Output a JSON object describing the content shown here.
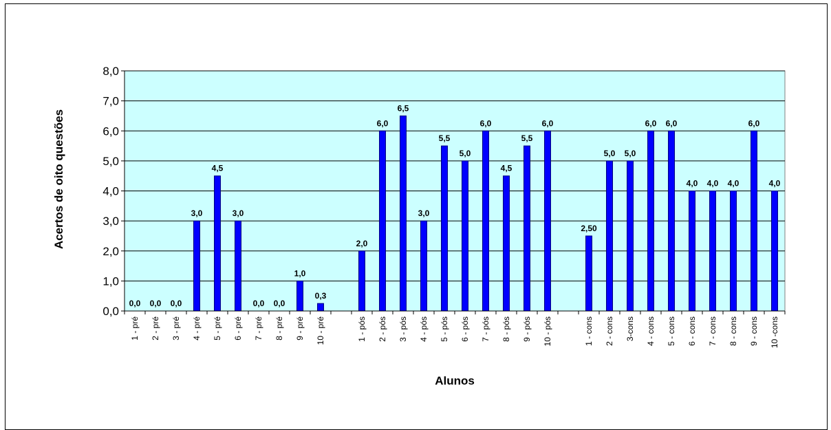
{
  "chart_data": {
    "type": "bar",
    "xlabel": "Alunos",
    "ylabel": "Acertos de oito questões",
    "ylim": [
      0,
      8
    ],
    "y_ticks": [
      "0,0",
      "1,0",
      "2,0",
      "3,0",
      "4,0",
      "5,0",
      "6,0",
      "7,0",
      "8,0"
    ],
    "grid": true,
    "legend": "none",
    "colors": {
      "plot_bg": "#ccffff",
      "bar_fill": "#0000ff",
      "bar_stroke": "#000080",
      "grid": "#000000"
    },
    "categories": [
      "1 - pré",
      "2 - pré",
      "3 - pré",
      "4 - pré",
      "5 - pré",
      "6 - pré",
      "7 - pré",
      "8 - pré",
      "9 - pré",
      "10 - pré",
      "",
      "1 - pós",
      "2 - pós",
      "3 - pós",
      "4 - pós",
      "5 - pós",
      "6 - pós",
      "7 - pós",
      "8 - pós",
      "9 - pós",
      "10 - pós",
      "",
      "1 - cons",
      "2 - cons",
      "3-cons",
      "4 - cons",
      "5 - cons",
      "6 - cons",
      "7 - cons",
      "8 - cons",
      "9 - cons",
      "10 -cons"
    ],
    "values": [
      0,
      0,
      0,
      3.0,
      4.5,
      3.0,
      0,
      0,
      1.0,
      0.25,
      null,
      2.0,
      6.0,
      6.5,
      3.0,
      5.5,
      5.0,
      6.0,
      4.5,
      5.5,
      6.0,
      null,
      2.5,
      5.0,
      5.0,
      6.0,
      6.0,
      4.0,
      4.0,
      4.0,
      6.0,
      4.0
    ],
    "data_labels": [
      "0,0",
      "0,0",
      "0,0",
      "3,0",
      "4,5",
      "3,0",
      "0,0",
      "0,0",
      "1,0",
      "0,3",
      "",
      "2,0",
      "6,0",
      "6,5",
      "3,0",
      "5,5",
      "5,0",
      "6,0",
      "4,5",
      "5,5",
      "6,0",
      "",
      "2,50",
      "5,0",
      "5,0",
      "6,0",
      "6,0",
      "4,0",
      "4,0",
      "4,0",
      "6,0",
      "4,0"
    ]
  }
}
